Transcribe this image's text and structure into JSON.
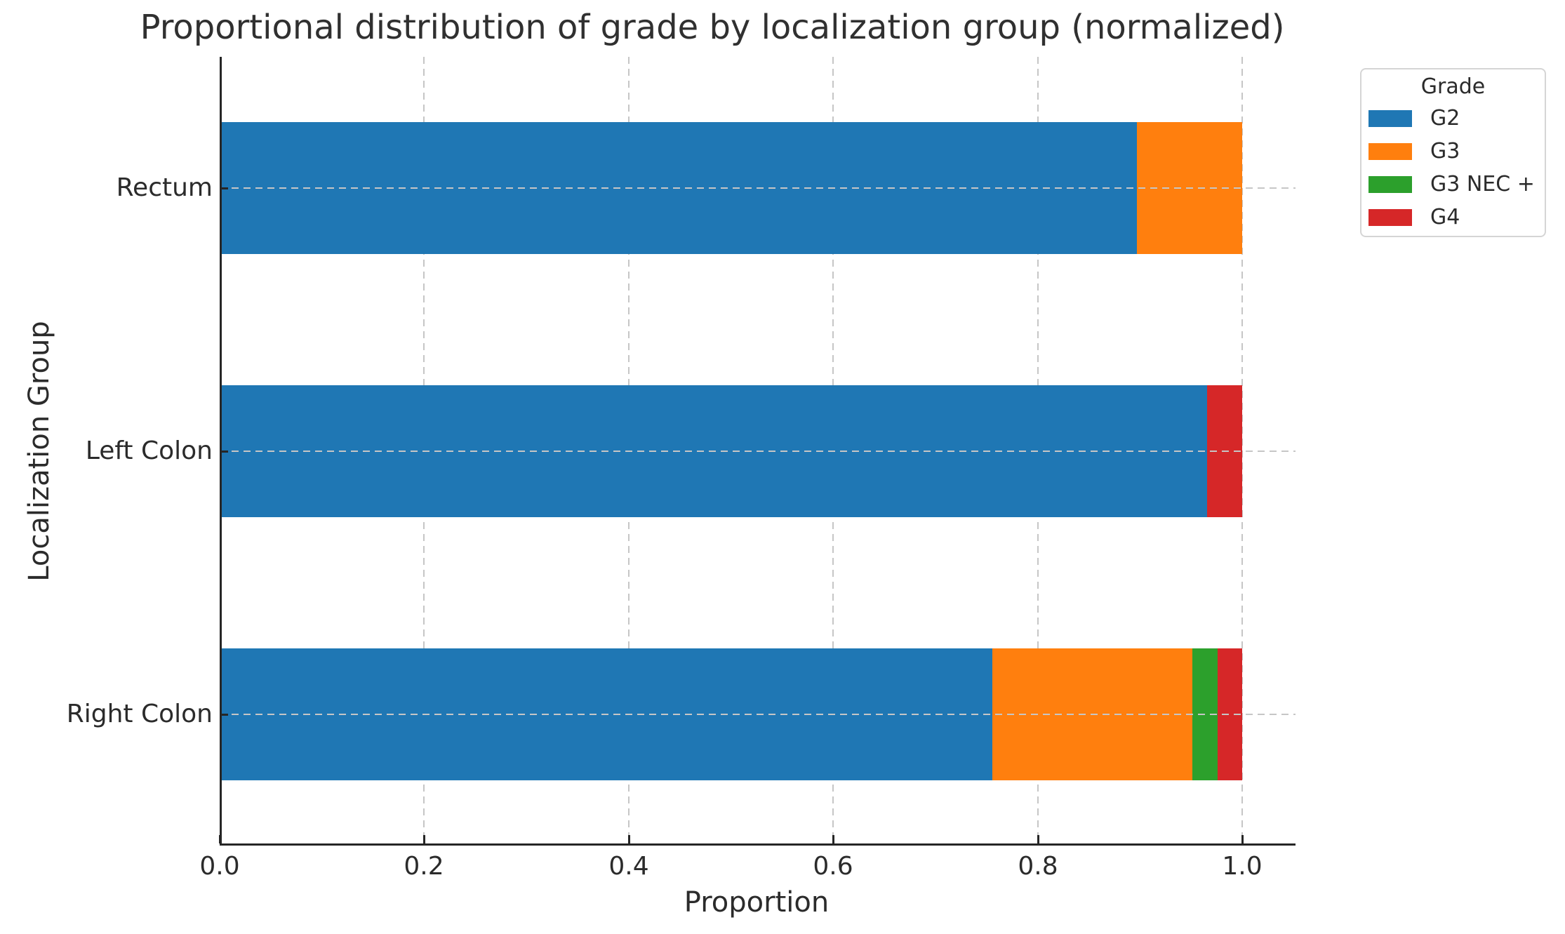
{
  "chart_data": {
    "type": "bar",
    "orientation": "horizontal",
    "stacked": true,
    "normalized": true,
    "title": "Proportional distribution of grade by localization group (normalized)",
    "xlabel": "Proportion",
    "ylabel": "Localization Group",
    "categories": [
      "Rectum",
      "Left Colon",
      "Right Colon"
    ],
    "series": [
      {
        "name": "G2",
        "color": "#1f77b4",
        "values": [
          0.897,
          0.966,
          0.756
        ]
      },
      {
        "name": "G3",
        "color": "#ff7f0e",
        "values": [
          0.103,
          0.0,
          0.195
        ]
      },
      {
        "name": "G3 NEC +",
        "color": "#2ca02c",
        "values": [
          0.0,
          0.0,
          0.025
        ]
      },
      {
        "name": "G4",
        "color": "#d62728",
        "values": [
          0.0,
          0.034,
          0.024
        ]
      }
    ],
    "x_ticks": [
      "0.0",
      "0.2",
      "0.4",
      "0.6",
      "0.8",
      "1.0"
    ],
    "xlim": [
      0.0,
      1.05
    ],
    "grid": "dashed",
    "legend_title": "Grade",
    "legend_position": "upper right outside plot"
  },
  "colors": {
    "g2_blue": "#1f77b4",
    "g3_orange": "#ff7f0e",
    "g3nec_green": "#2ca02c",
    "g4_red": "#d62728",
    "gridline": "#c6c6c6",
    "spine": "#262626",
    "text": "#2b2b2b"
  }
}
